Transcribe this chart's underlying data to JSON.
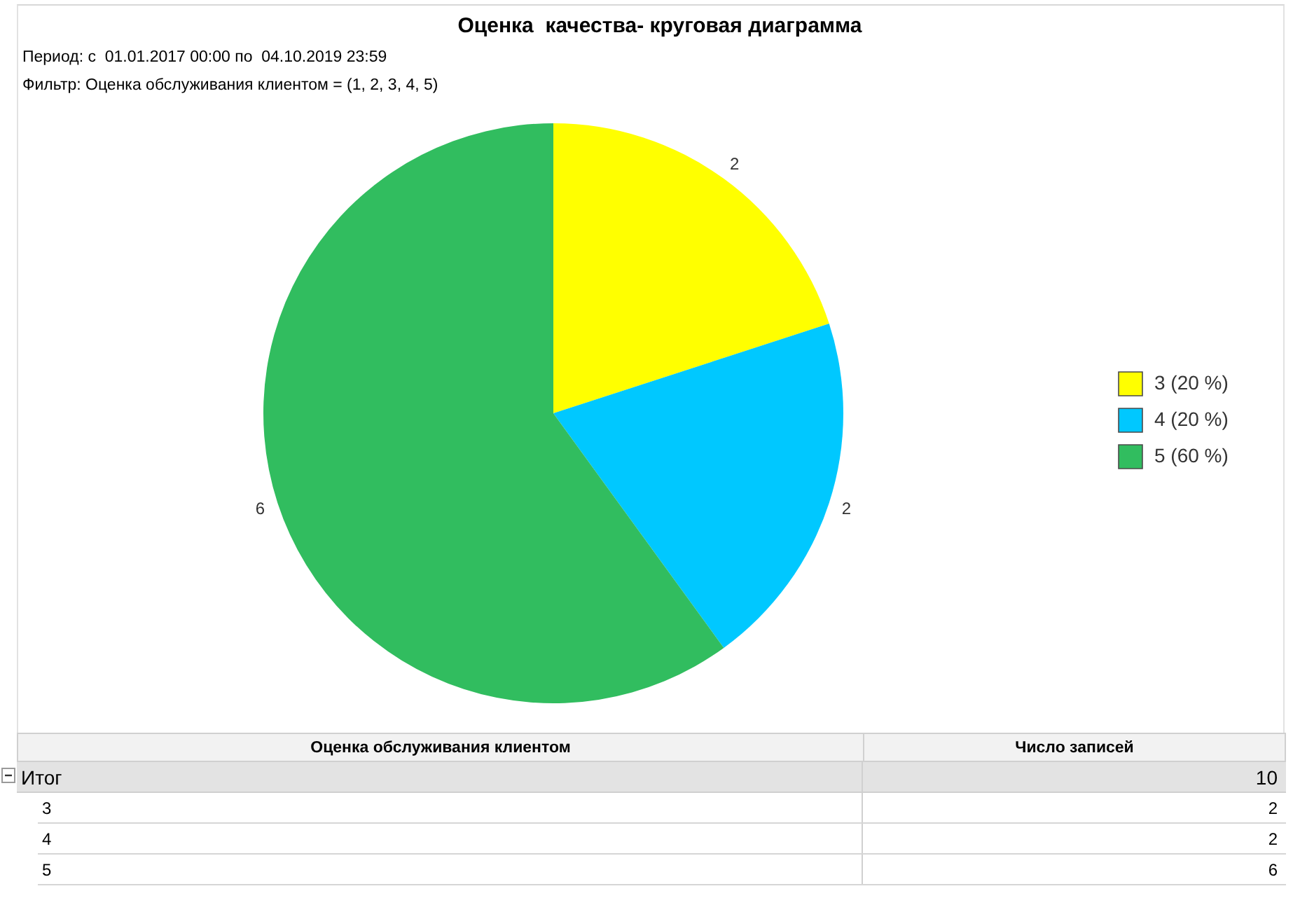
{
  "chart_data": [
    {
      "type": "pie",
      "title": "Оценка  качества- круговая диаграмма",
      "subtitle": "Период: с  01.01.2017 00:00 по  04.10.2019 23:59",
      "annotations": [
        "Фильтр: Оценка обслуживания клиентом = (1, 2, 3, 4, 5)"
      ],
      "categories": [
        "3  (20 %)",
        "4  (20 %)",
        "5  (60 %)"
      ],
      "values": [
        2,
        2,
        6
      ],
      "colors": [
        "#ffff00",
        "#00c8ff",
        "#31bd5f"
      ],
      "data_labels": true,
      "legend": "right"
    },
    {
      "type": "other",
      "xlabel": "Оценка обслуживания клиентом",
      "ylabel": "Число записей",
      "categories": [
        "3",
        "4",
        "5"
      ],
      "values": [
        2,
        2,
        6
      ],
      "data_labels": true,
      "totals": [
        "10"
      ],
      "annotations": [
        "Итог"
      ]
    }
  ]
}
